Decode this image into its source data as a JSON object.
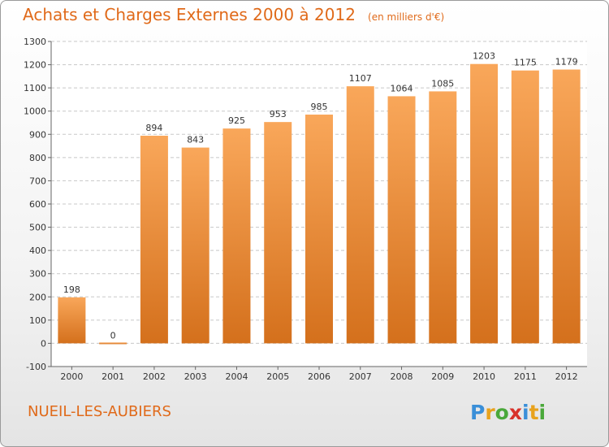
{
  "header": {
    "title": "Achats et Charges Externes 2000 à 2012",
    "subtitle": "(en milliers d'€)"
  },
  "footer": {
    "commune": "NUEIL-LES-AUBIERS",
    "logo_text": "Proxiti"
  },
  "colors": {
    "accent": "#e06a1a",
    "bar_light": "#f9a75a",
    "bar_dark": "#d4701c",
    "grid": "#c8c8c8",
    "plot_bg": "#ffffff"
  },
  "chart_data": {
    "type": "bar",
    "categories": [
      "2000",
      "2001",
      "2002",
      "2003",
      "2004",
      "2005",
      "2006",
      "2007",
      "2008",
      "2009",
      "2010",
      "2011",
      "2012"
    ],
    "values": [
      198,
      0,
      894,
      843,
      925,
      953,
      985,
      1107,
      1064,
      1085,
      1203,
      1175,
      1179
    ],
    "data_labels": [
      "198",
      "0",
      "894",
      "843",
      "925",
      "953",
      "985",
      "1107",
      "1064",
      "1085",
      "1203",
      "1175",
      "1179"
    ],
    "title": "Achats et Charges Externes 2000 à 2012",
    "subtitle": "(en milliers d'€)",
    "xlabel": "",
    "ylabel": "",
    "ylim": [
      -100,
      1300
    ],
    "yticks": [
      -100,
      0,
      100,
      200,
      300,
      400,
      500,
      600,
      700,
      800,
      900,
      1000,
      1100,
      1200,
      1300
    ],
    "ytick_labels": [
      "-100",
      "0",
      "100",
      "200",
      "300",
      "400",
      "500",
      "600",
      "700",
      "800",
      "900",
      "1000",
      "1100",
      "1200",
      "1300"
    ],
    "grid": true,
    "legend": "none"
  }
}
